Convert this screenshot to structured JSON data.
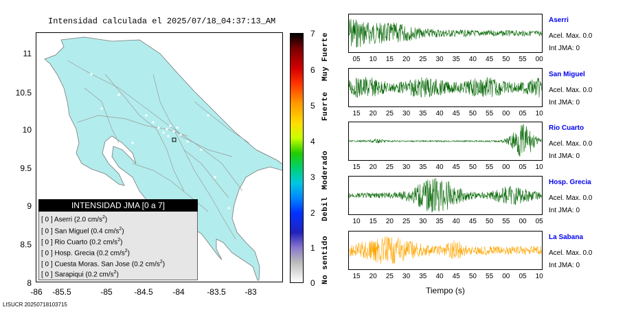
{
  "map": {
    "title": "Intensidad calculada el 2025/07/18_04:37:13_AM",
    "y_ticks": [
      "11",
      "10.5",
      "10",
      "9.5",
      "9",
      "8.5",
      "8"
    ],
    "x_ticks": [
      "-86",
      "-85.5",
      "-85",
      "-84.5",
      "-84",
      "-83.5",
      "-83"
    ],
    "land_color": "#b3ecec"
  },
  "legend": {
    "title": "INTENSIDAD JMA [0 a 7]",
    "rows": [
      {
        "int": "[ 0 ]",
        "station": "Aserri",
        "value": "(2.0 cm/s",
        "exp": "2",
        "close": ")"
      },
      {
        "int": "[ 0 ]",
        "station": "San Miguel",
        "value": "(0.4 cm/s",
        "exp": "2",
        "close": ")"
      },
      {
        "int": "[ 0 ]",
        "station": "Rio Cuarto",
        "value": "(0.2 cm/s",
        "exp": "2",
        "close": ")"
      },
      {
        "int": "[ 0 ]",
        "station": "Hosp. Grecia",
        "value": "(0.2 cm/s",
        "exp": "2",
        "close": ")"
      },
      {
        "int": "[ 0 ]",
        "station": "Cuesta Moras. San Jose",
        "value": "(0.2 cm/s",
        "exp": "2",
        "close": ")"
      },
      {
        "int": "[ 0 ]",
        "station": "Sarapiqui",
        "value": "(0.2 cm/s",
        "exp": "2",
        "close": ")"
      }
    ]
  },
  "colorbar": {
    "ticks": [
      "7",
      "6",
      "5",
      "4",
      "3",
      "2",
      "1",
      "0"
    ],
    "labels": [
      "Muy Fuerte",
      "Fuerte",
      "Moderado",
      "Debil",
      "No sentido"
    ]
  },
  "stations": [
    {
      "name": "Aserri",
      "acel": "Acel. Max. 0.0",
      "jma": "Int JMA: 0",
      "ticks": [
        "05",
        "10",
        "15",
        "20",
        "25",
        "30",
        "35",
        "40",
        "45",
        "50",
        "55",
        "00"
      ],
      "color": "#006400"
    },
    {
      "name": "San Miguel",
      "acel": "Acel. Max. 0.0",
      "jma": "Int JMA: 0",
      "ticks": [
        "15",
        "20",
        "25",
        "30",
        "35",
        "40",
        "45",
        "50",
        "55",
        "00",
        "05",
        "10"
      ],
      "color": "#006400"
    },
    {
      "name": "Rio Cuarto",
      "acel": "Acel. Max. 0.0",
      "jma": "Int JMA: 0",
      "ticks": [
        "15",
        "20",
        "25",
        "30",
        "35",
        "40",
        "45",
        "50",
        "55",
        "00",
        "05",
        "10"
      ],
      "color": "#006400"
    },
    {
      "name": "Hosp. Grecia",
      "acel": "Acel. Max. 0.0",
      "jma": "Int JMA: 0",
      "ticks": [
        "10",
        "15",
        "20",
        "25",
        "30",
        "35",
        "40",
        "45",
        "50",
        "55",
        "00",
        "05"
      ],
      "color": "#006400"
    },
    {
      "name": "La Sabana",
      "acel": "Acel. Max. 0.0",
      "jma": "Int JMA: 0",
      "ticks": [
        "15",
        "20",
        "25",
        "30",
        "35",
        "40",
        "45",
        "50",
        "55",
        "00",
        "05",
        "10"
      ],
      "color": "#ffa500"
    }
  ],
  "waveforms": {
    "xlabel": "Tiempo (s)"
  },
  "footer": "LISUCR 20250718103715"
}
